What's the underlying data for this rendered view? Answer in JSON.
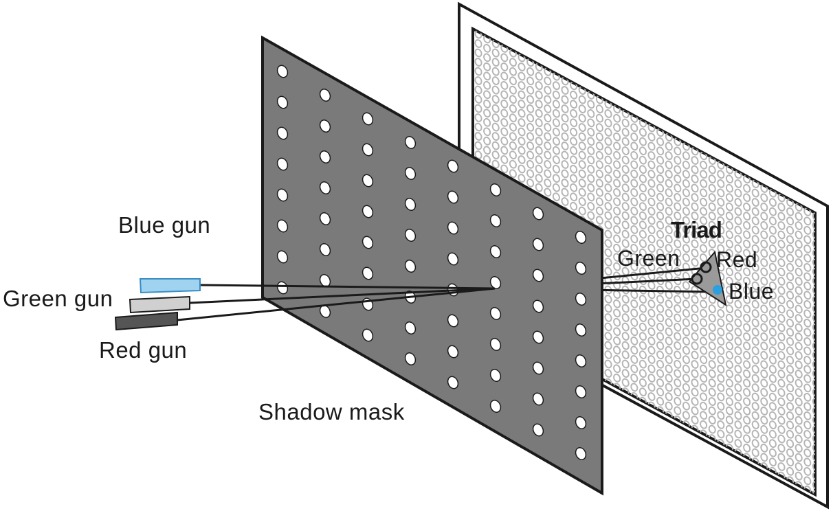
{
  "labels": {
    "blue_gun": "Blue gun",
    "green_gun": "Green gun",
    "red_gun": "Red gun",
    "shadow_mask": "Shadow mask",
    "triad": "Triad",
    "triad_green": "Green",
    "triad_red": "Red",
    "triad_blue": "Blue"
  },
  "colors": {
    "mask_fill": "#7a7a7a",
    "outline": "#1a1a1a",
    "screen_bg": "#ffffff",
    "phosphor_ring": "#b5b5b5",
    "blue_gun": "#9fd3f0",
    "blue_gun_border": "#3a8cc4",
    "green_gun": "#d0d0d0",
    "red_gun": "#555555",
    "triad_fill": "#9a9a9a",
    "blue_dot": "#2aa0e0"
  }
}
